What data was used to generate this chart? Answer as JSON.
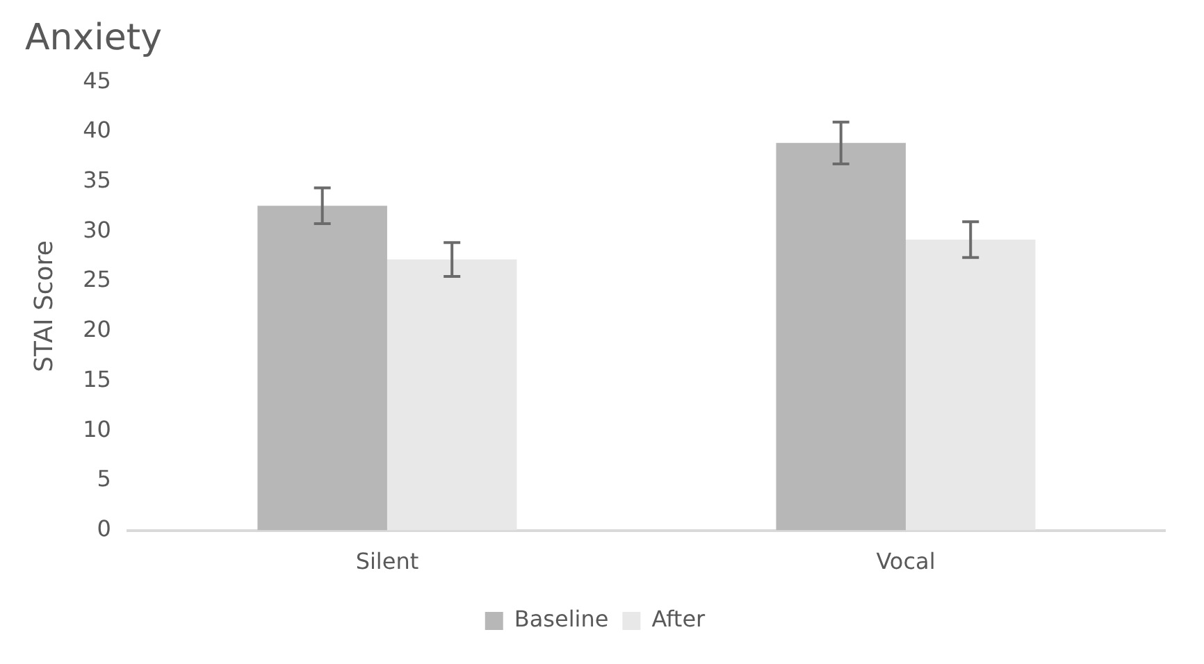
{
  "chart_data": {
    "type": "bar",
    "title": "Anxiety",
    "ylabel": "STAI Score",
    "categories": [
      "Silent",
      "Vocal"
    ],
    "series": [
      {
        "name": "Baseline",
        "color": "#b7b7b7",
        "values": [
          32.6,
          38.9
        ],
        "errors": [
          1.8,
          2.1
        ]
      },
      {
        "name": "After",
        "color": "#e8e8e8",
        "values": [
          27.2,
          29.2
        ],
        "errors": [
          1.7,
          1.8
        ]
      }
    ],
    "ylim": [
      0,
      45
    ],
    "yticks": [
      0,
      5,
      10,
      15,
      20,
      25,
      30,
      35,
      40,
      45
    ],
    "grid": false,
    "legend": "bottom"
  }
}
